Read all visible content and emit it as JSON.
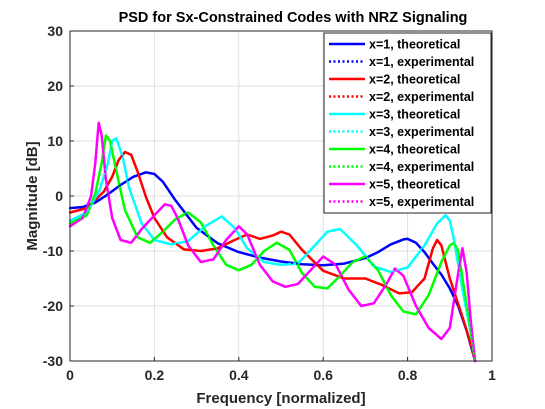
{
  "chart_data": {
    "type": "line",
    "title": "PSD for Sx-Constrained Codes with NRZ Signaling",
    "xlabel": "Frequency [normalized]",
    "ylabel": "Magnitude [dB]",
    "xlim": [
      0,
      1
    ],
    "ylim": [
      -30,
      30
    ],
    "xticks": [
      "0",
      "0.2",
      "0.4",
      "0.6",
      "0.8",
      "1"
    ],
    "yticks": [
      "30",
      "20",
      "10",
      "0",
      "-10",
      "-20",
      "-30"
    ],
    "grid": true,
    "legend_position": "top-right",
    "series": [
      {
        "name": "x=1, theoretical",
        "color": "#0000ff",
        "style": "solid",
        "x": [
          0.0,
          0.03,
          0.06,
          0.09,
          0.12,
          0.15,
          0.18,
          0.2,
          0.22,
          0.25,
          0.3,
          0.35,
          0.4,
          0.45,
          0.5,
          0.55,
          0.6,
          0.65,
          0.7,
          0.73,
          0.76,
          0.79,
          0.8,
          0.82,
          0.84,
          0.86,
          0.88,
          0.9,
          0.92,
          0.94,
          0.96
        ],
        "y": [
          -2.2,
          -2.0,
          -1.2,
          0.3,
          2.0,
          3.5,
          4.3,
          4.0,
          2.6,
          -0.8,
          -5.8,
          -8.6,
          -10.2,
          -11.2,
          -11.9,
          -12.4,
          -12.6,
          -12.3,
          -11.3,
          -10.2,
          -8.8,
          -7.9,
          -7.8,
          -8.5,
          -10.2,
          -12.3,
          -14.3,
          -16.8,
          -20.0,
          -24.5,
          -30.0
        ]
      },
      {
        "name": "x=1, experimental",
        "color": "#0000ff",
        "style": "dotted",
        "x": [
          0.0,
          0.03,
          0.06,
          0.09,
          0.12,
          0.15,
          0.18,
          0.2,
          0.22,
          0.25,
          0.3,
          0.35,
          0.4,
          0.45,
          0.5,
          0.55,
          0.6,
          0.65,
          0.7,
          0.73,
          0.76,
          0.79,
          0.8,
          0.82,
          0.84,
          0.86,
          0.88,
          0.9,
          0.92,
          0.94,
          0.96
        ],
        "y": [
          -2.2,
          -2.0,
          -1.2,
          0.3,
          2.0,
          3.5,
          4.3,
          4.0,
          2.6,
          -0.8,
          -5.8,
          -8.6,
          -10.2,
          -11.2,
          -11.9,
          -12.4,
          -12.6,
          -12.3,
          -11.3,
          -10.2,
          -8.8,
          -7.9,
          -7.8,
          -8.5,
          -10.2,
          -12.3,
          -14.3,
          -16.8,
          -20.0,
          -24.5,
          -30.0
        ]
      },
      {
        "name": "x=2, theoretical",
        "color": "#ff0000",
        "style": "solid",
        "x": [
          0.0,
          0.04,
          0.08,
          0.1,
          0.115,
          0.13,
          0.145,
          0.16,
          0.18,
          0.2,
          0.23,
          0.27,
          0.31,
          0.35,
          0.39,
          0.42,
          0.45,
          0.48,
          0.5,
          0.52,
          0.55,
          0.6,
          0.65,
          0.7,
          0.74,
          0.78,
          0.81,
          0.84,
          0.86,
          0.87,
          0.88,
          0.9,
          0.93,
          0.95,
          0.96
        ],
        "y": [
          -3.0,
          -2.2,
          0.8,
          3.5,
          6.5,
          8.0,
          7.5,
          4.5,
          -0.2,
          -4.0,
          -7.5,
          -9.7,
          -10.0,
          -9.5,
          -8.0,
          -7.0,
          -7.8,
          -7.2,
          -6.5,
          -7.0,
          -9.8,
          -13.6,
          -15.0,
          -15.0,
          -16.2,
          -17.7,
          -17.5,
          -15.0,
          -9.5,
          -8.0,
          -9.0,
          -15.0,
          -22.0,
          -27.0,
          -30.0
        ]
      },
      {
        "name": "x=2, experimental",
        "color": "#ff0000",
        "style": "dotted",
        "x": [
          0.0,
          0.04,
          0.08,
          0.1,
          0.115,
          0.13,
          0.145,
          0.16,
          0.18,
          0.2,
          0.23,
          0.27,
          0.31,
          0.35,
          0.39,
          0.42,
          0.45,
          0.48,
          0.5,
          0.52,
          0.55,
          0.6,
          0.65,
          0.7,
          0.74,
          0.78,
          0.81,
          0.84,
          0.86,
          0.87,
          0.88,
          0.9,
          0.93,
          0.95,
          0.96
        ],
        "y": [
          -3.0,
          -2.2,
          0.8,
          3.5,
          6.5,
          8.0,
          7.5,
          4.5,
          -0.2,
          -4.0,
          -7.5,
          -9.7,
          -10.0,
          -9.5,
          -8.0,
          -7.0,
          -7.8,
          -7.2,
          -6.5,
          -7.0,
          -9.8,
          -13.6,
          -15.0,
          -15.0,
          -16.2,
          -17.7,
          -17.5,
          -15.0,
          -9.5,
          -8.0,
          -9.0,
          -15.0,
          -22.0,
          -27.0,
          -30.0
        ]
      },
      {
        "name": "x=3, theoretical",
        "color": "#00ffff",
        "style": "solid",
        "x": [
          0.0,
          0.04,
          0.07,
          0.09,
          0.1,
          0.11,
          0.125,
          0.14,
          0.17,
          0.2,
          0.24,
          0.28,
          0.32,
          0.36,
          0.39,
          0.42,
          0.46,
          0.5,
          0.54,
          0.58,
          0.61,
          0.64,
          0.68,
          0.72,
          0.76,
          0.8,
          0.84,
          0.87,
          0.89,
          0.9,
          0.91,
          0.93,
          0.95,
          0.96
        ],
        "y": [
          -4.5,
          -3.0,
          1.0,
          6.0,
          10.0,
          10.5,
          7.0,
          1.5,
          -5.0,
          -8.0,
          -8.8,
          -8.2,
          -5.5,
          -3.7,
          -5.8,
          -9.5,
          -12.0,
          -12.5,
          -12.3,
          -9.0,
          -6.5,
          -6.0,
          -9.0,
          -12.8,
          -13.8,
          -13.0,
          -9.0,
          -5.0,
          -3.5,
          -4.5,
          -8.0,
          -17.0,
          -25.0,
          -30.0
        ]
      },
      {
        "name": "x=3, experimental",
        "color": "#00ffff",
        "style": "dotted",
        "x": [
          0.0,
          0.04,
          0.07,
          0.09,
          0.1,
          0.11,
          0.125,
          0.14,
          0.17,
          0.2,
          0.24,
          0.28,
          0.32,
          0.36,
          0.39,
          0.42,
          0.46,
          0.5,
          0.54,
          0.58,
          0.61,
          0.64,
          0.68,
          0.72,
          0.76,
          0.8,
          0.84,
          0.87,
          0.89,
          0.9,
          0.91,
          0.93,
          0.95,
          0.96
        ],
        "y": [
          -4.5,
          -3.0,
          1.0,
          6.0,
          10.0,
          10.5,
          7.0,
          1.5,
          -5.0,
          -8.0,
          -8.8,
          -8.2,
          -5.5,
          -3.7,
          -5.8,
          -9.5,
          -12.0,
          -12.5,
          -12.3,
          -9.0,
          -6.5,
          -6.0,
          -9.0,
          -12.8,
          -13.8,
          -13.0,
          -9.0,
          -5.0,
          -3.5,
          -4.5,
          -8.0,
          -17.0,
          -25.0,
          -30.0
        ]
      },
      {
        "name": "x=4, theoretical",
        "color": "#00ff00",
        "style": "solid",
        "x": [
          0.0,
          0.04,
          0.06,
          0.075,
          0.085,
          0.095,
          0.11,
          0.13,
          0.16,
          0.19,
          0.22,
          0.25,
          0.28,
          0.31,
          0.34,
          0.37,
          0.4,
          0.43,
          0.46,
          0.49,
          0.52,
          0.55,
          0.58,
          0.61,
          0.64,
          0.67,
          0.7,
          0.73,
          0.76,
          0.79,
          0.82,
          0.85,
          0.88,
          0.9,
          0.91,
          0.92,
          0.93,
          0.95,
          0.96
        ],
        "y": [
          -5.0,
          -3.5,
          0.5,
          6.0,
          11.0,
          10.0,
          4.5,
          -2.5,
          -7.5,
          -8.5,
          -6.5,
          -4.2,
          -3.0,
          -4.8,
          -9.0,
          -12.5,
          -13.5,
          -12.5,
          -10.0,
          -8.5,
          -9.8,
          -14.0,
          -16.5,
          -16.8,
          -14.5,
          -12.0,
          -11.0,
          -13.5,
          -18.0,
          -21.0,
          -21.5,
          -18.0,
          -12.0,
          -9.0,
          -8.5,
          -10.0,
          -15.0,
          -25.0,
          -30.0
        ]
      },
      {
        "name": "x=4, experimental",
        "color": "#00ff00",
        "style": "dotted",
        "x": [
          0.0,
          0.04,
          0.06,
          0.075,
          0.085,
          0.095,
          0.11,
          0.13,
          0.16,
          0.19,
          0.22,
          0.25,
          0.28,
          0.31,
          0.34,
          0.37,
          0.4,
          0.43,
          0.46,
          0.49,
          0.52,
          0.55,
          0.58,
          0.61,
          0.64,
          0.67,
          0.7,
          0.73,
          0.76,
          0.79,
          0.82,
          0.85,
          0.88,
          0.9,
          0.91,
          0.92,
          0.93,
          0.95,
          0.96
        ],
        "y": [
          -5.0,
          -3.5,
          0.5,
          6.0,
          11.0,
          10.0,
          4.5,
          -2.5,
          -7.5,
          -8.5,
          -6.5,
          -4.2,
          -3.0,
          -4.8,
          -9.0,
          -12.5,
          -13.5,
          -12.5,
          -10.0,
          -8.5,
          -9.8,
          -14.0,
          -16.5,
          -16.8,
          -14.5,
          -12.0,
          -11.0,
          -13.5,
          -18.0,
          -21.0,
          -21.5,
          -18.0,
          -12.0,
          -9.0,
          -8.5,
          -10.0,
          -15.0,
          -25.0,
          -30.0
        ]
      },
      {
        "name": "x=5, theoretical",
        "color": "#ff00ff",
        "style": "solid",
        "x": [
          0.0,
          0.03,
          0.05,
          0.06,
          0.068,
          0.075,
          0.085,
          0.1,
          0.12,
          0.145,
          0.17,
          0.2,
          0.225,
          0.24,
          0.255,
          0.28,
          0.31,
          0.34,
          0.37,
          0.4,
          0.42,
          0.45,
          0.48,
          0.51,
          0.54,
          0.57,
          0.6,
          0.63,
          0.66,
          0.69,
          0.72,
          0.75,
          0.77,
          0.79,
          0.82,
          0.85,
          0.88,
          0.9,
          0.92,
          0.93,
          0.94,
          0.95,
          0.96
        ],
        "y": [
          -5.5,
          -4.0,
          0.0,
          6.0,
          13.3,
          11.0,
          3.0,
          -4.0,
          -8.0,
          -8.5,
          -6.0,
          -3.5,
          -1.5,
          -1.8,
          -4.0,
          -9.0,
          -12.0,
          -11.5,
          -8.0,
          -5.5,
          -7.0,
          -12.5,
          -15.5,
          -16.5,
          -16.0,
          -13.5,
          -11.0,
          -12.5,
          -17.0,
          -20.0,
          -19.5,
          -16.0,
          -13.2,
          -14.5,
          -20.0,
          -24.0,
          -26.0,
          -24.0,
          -14.0,
          -9.5,
          -14.0,
          -23.0,
          -30.0
        ]
      },
      {
        "name": "x=5, experimental",
        "color": "#ff00ff",
        "style": "dotted",
        "x": [
          0.0,
          0.03,
          0.05,
          0.06,
          0.068,
          0.075,
          0.085,
          0.1,
          0.12,
          0.145,
          0.17,
          0.2,
          0.225,
          0.24,
          0.255,
          0.28,
          0.31,
          0.34,
          0.37,
          0.4,
          0.42,
          0.45,
          0.48,
          0.51,
          0.54,
          0.57,
          0.6,
          0.63,
          0.66,
          0.69,
          0.72,
          0.75,
          0.77,
          0.79,
          0.82,
          0.85,
          0.88,
          0.9,
          0.92,
          0.93,
          0.94,
          0.95,
          0.96
        ],
        "y": [
          -5.5,
          -4.0,
          0.0,
          6.0,
          13.3,
          11.0,
          3.0,
          -4.0,
          -8.0,
          -8.5,
          -6.0,
          -3.5,
          -1.5,
          -1.8,
          -4.0,
          -9.0,
          -12.0,
          -11.5,
          -8.0,
          -5.5,
          -7.0,
          -12.5,
          -15.5,
          -16.5,
          -16.0,
          -13.5,
          -11.0,
          -12.5,
          -17.0,
          -20.0,
          -19.5,
          -16.0,
          -13.2,
          -14.5,
          -20.0,
          -24.0,
          -26.0,
          -24.0,
          -14.0,
          -9.5,
          -14.0,
          -23.0,
          -30.0
        ]
      }
    ]
  }
}
